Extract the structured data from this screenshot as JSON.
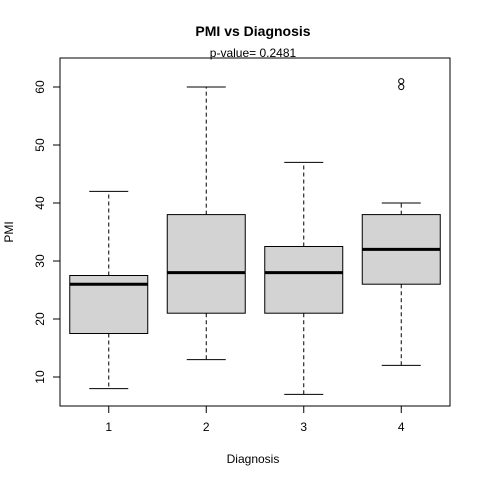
{
  "chart_data": {
    "type": "boxplot",
    "title": "PMI  vs  Diagnosis",
    "subtitle": "p-value= 0.2481",
    "xlabel": "Diagnosis",
    "ylabel": "PMI",
    "categories": [
      "1",
      "2",
      "3",
      "4"
    ],
    "ylim": [
      5,
      65
    ],
    "y_ticks": [
      10,
      20,
      30,
      40,
      50,
      60
    ],
    "boxes": [
      {
        "category": "1",
        "whisker_low": 8,
        "q1": 17.5,
        "median": 26,
        "q3": 27.5,
        "whisker_high": 42,
        "outliers": []
      },
      {
        "category": "2",
        "whisker_low": 13,
        "q1": 21,
        "median": 28,
        "q3": 38,
        "whisker_high": 60,
        "outliers": []
      },
      {
        "category": "3",
        "whisker_low": 7,
        "q1": 21,
        "median": 28,
        "q3": 32.5,
        "whisker_high": 47,
        "outliers": []
      },
      {
        "category": "4",
        "whisker_low": 12,
        "q1": 26,
        "median": 32,
        "q3": 38,
        "whisker_high": 40,
        "outliers": [
          60,
          61
        ]
      }
    ],
    "box_fill": "#d3d3d3",
    "line_color": "#000000",
    "grid": false
  }
}
